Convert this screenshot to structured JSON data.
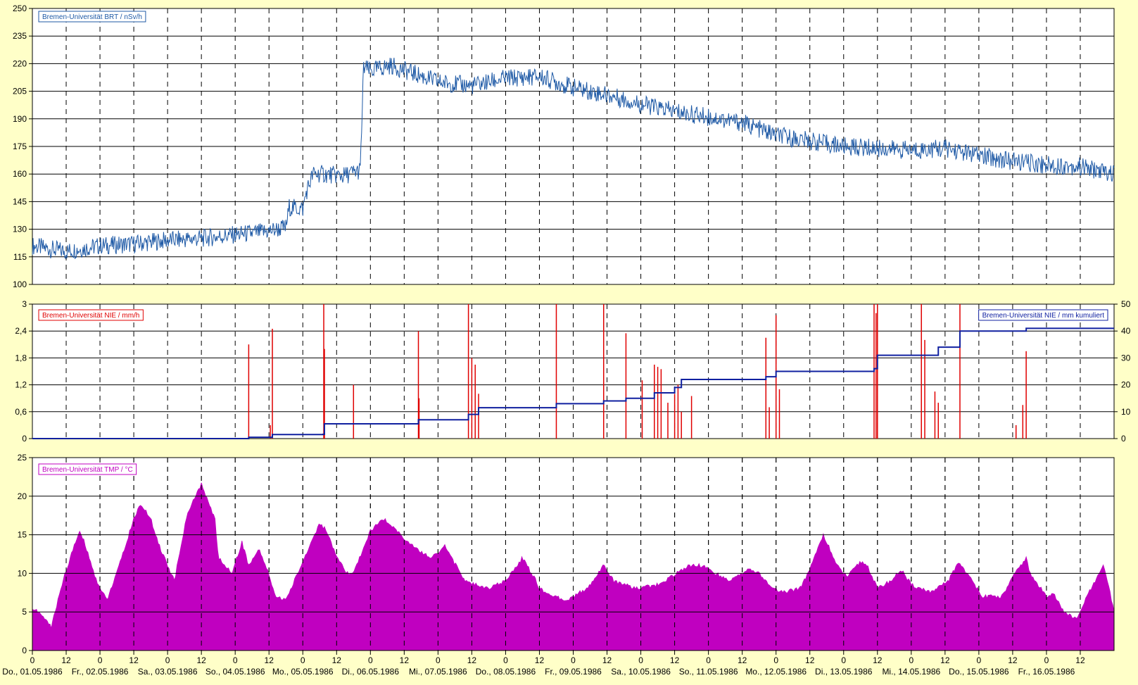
{
  "chart_data": [
    {
      "id": "dose-rate",
      "type": "line",
      "legend": "Bremen-Universität   BRT / nSv/h",
      "legend_position": "top-left",
      "color": "#1f5aa6",
      "ylim": [
        100,
        250
      ],
      "yticks": [
        "100",
        "115",
        "130",
        "145",
        "160",
        "175",
        "190",
        "205",
        "220",
        "235",
        "250"
      ],
      "grid": true,
      "series": [
        {
          "x_days": [
            0,
            0.3,
            0.5,
            1,
            1.5,
            2,
            2.5,
            3,
            3.3,
            3.5,
            3.75,
            3.8,
            4.0,
            4.05,
            4.15,
            4.3,
            4.6,
            4.85,
            4.9,
            5.0,
            5.3,
            5.7,
            6.0,
            6.5,
            7.0,
            7.5,
            8.0,
            8.5,
            9.0,
            9.5,
            10.0,
            10.5,
            11.0,
            11.5,
            12.0,
            12.5,
            13.0,
            13.5,
            14.0,
            14.5,
            15.0,
            15.5,
            16.0
          ],
          "values": [
            121,
            119,
            118,
            121,
            122,
            124,
            125,
            127,
            128,
            129,
            131,
            142,
            141,
            150,
            160,
            160,
            159,
            162,
            218,
            216,
            219,
            214,
            210,
            208,
            212,
            213,
            207,
            203,
            198,
            194,
            191,
            188,
            181,
            178,
            175,
            174,
            173,
            174,
            170,
            167,
            165,
            164,
            160
          ]
        }
      ]
    },
    {
      "id": "precipitation",
      "type": "bar+line",
      "legend_left": "Bremen-Universität   NIE / mm/h",
      "legend_right": "Bremen-Universität   NIE / mm kumuliert",
      "legend_left_position": "top-left",
      "legend_right_position": "top-right",
      "color_bars": "#e00000",
      "color_line": "#1020a0",
      "ylim_left": [
        0,
        3
      ],
      "ylim_right": [
        0,
        50
      ],
      "yticks_left": [
        "0",
        "0,6",
        "1,2",
        "1,8",
        "2,4",
        "3"
      ],
      "yticks_right": [
        "0",
        "10",
        "20",
        "30",
        "40",
        "50"
      ],
      "grid": true,
      "bars": {
        "x_days": [
          3.2,
          3.52,
          3.55,
          4.31,
          4.32,
          4.75,
          5.71,
          5.72,
          6.45,
          6.5,
          6.55,
          6.6,
          7.75,
          8.45,
          8.78,
          9.02,
          9.2,
          9.25,
          9.3,
          9.4,
          9.5,
          9.55,
          9.6,
          9.75,
          10.85,
          10.9,
          11.0,
          11.05,
          12.45,
          12.48,
          12.5,
          13.15,
          13.2,
          13.35,
          13.4,
          13.72,
          14.55,
          14.65,
          14.7
        ],
        "values": [
          2.1,
          0.3,
          2.45,
          3.0,
          2.0,
          1.2,
          2.4,
          0.9,
          3.0,
          1.8,
          1.65,
          1.0,
          3.0,
          3.0,
          2.35,
          1.3,
          1.65,
          1.6,
          1.55,
          0.8,
          1.0,
          1.2,
          0.6,
          0.95,
          2.25,
          0.7,
          2.75,
          1.1,
          3.0,
          2.8,
          3.0,
          3.0,
          2.2,
          1.05,
          0.8,
          3.0,
          0.3,
          0.75,
          1.95
        ]
      },
      "cumulative": {
        "x_days": [
          0,
          3.2,
          3.55,
          4.3,
          4.32,
          5.71,
          6.45,
          6.6,
          7.75,
          8.45,
          8.78,
          9.2,
          9.5,
          9.6,
          10.85,
          11.0,
          12.45,
          12.5,
          13.4,
          13.72,
          14.55,
          14.7,
          16.0
        ],
        "values": [
          0,
          0.5,
          1.5,
          1.6,
          5.5,
          7,
          9,
          11.5,
          13,
          14,
          15,
          17,
          19,
          22,
          23,
          25,
          26,
          31,
          34,
          40,
          40,
          41,
          41
        ]
      }
    },
    {
      "id": "temperature",
      "type": "area",
      "legend": "Bremen-Universität   TMP / °C",
      "legend_position": "top-left",
      "color": "#c000c0",
      "ylim": [
        0,
        25
      ],
      "yticks": [
        "0",
        "5",
        "10",
        "15",
        "20",
        "25"
      ],
      "grid": true,
      "series": [
        {
          "x_days": [
            0,
            0.15,
            0.28,
            0.45,
            0.6,
            0.7,
            0.75,
            0.95,
            1.1,
            1.25,
            1.5,
            1.6,
            1.75,
            1.9,
            2.1,
            2.3,
            2.5,
            2.7,
            2.75,
            2.95,
            3.1,
            3.2,
            3.35,
            3.45,
            3.6,
            3.75,
            4.0,
            4.25,
            4.35,
            4.5,
            4.65,
            4.75,
            5.0,
            5.2,
            5.35,
            5.55,
            5.7,
            5.9,
            6.1,
            6.2,
            6.4,
            6.55,
            6.75,
            7.0,
            7.25,
            7.45,
            7.5,
            7.7,
            7.9,
            8.2,
            8.45,
            8.6,
            8.75,
            8.95,
            9.25,
            9.45,
            9.7,
            9.9,
            10.1,
            10.3,
            10.6,
            10.75,
            10.95,
            11.1,
            11.35,
            11.5,
            11.7,
            11.9,
            12.05,
            12.25,
            12.35,
            12.5,
            12.7,
            12.85,
            13.0,
            13.15,
            13.3,
            13.55,
            13.7,
            13.9,
            14.05,
            14.35,
            14.5,
            14.7,
            14.75,
            15.0,
            15.1,
            15.25,
            15.45,
            15.6,
            15.85,
            16.0
          ],
          "values": [
            5.5,
            4.5,
            3,
            9,
            13,
            15.5,
            14.5,
            9,
            6.5,
            10,
            17,
            19,
            17,
            13,
            9,
            18,
            21.5,
            17,
            12,
            10,
            14,
            11,
            13,
            11,
            7,
            6.5,
            11.5,
            16.5,
            15.5,
            12,
            10,
            10,
            15.5,
            17,
            16,
            14,
            13,
            12,
            13.5,
            12,
            9,
            8.5,
            8,
            9,
            12,
            9,
            8,
            7,
            6.5,
            8,
            11,
            9,
            8.5,
            8,
            8.5,
            9.5,
            11,
            11,
            10,
            9,
            10.5,
            10,
            8,
            7.5,
            8,
            10.5,
            15,
            11,
            9.5,
            11.5,
            11,
            8,
            9,
            10.5,
            8.5,
            8,
            7.5,
            9,
            11.5,
            9,
            7,
            7,
            9.5,
            12,
            10,
            7,
            7.5,
            5,
            4,
            7,
            11,
            5
          ]
        }
      ],
      "x_tick_labels": [
        "0",
        "12",
        "0",
        "12",
        "0",
        "12",
        "0",
        "12",
        "0",
        "12",
        "0",
        "12",
        "0",
        "12",
        "0",
        "12",
        "0",
        "12",
        "0",
        "12",
        "0",
        "12",
        "0",
        "12",
        "0",
        "12",
        "0",
        "12",
        "0",
        "12",
        "0",
        "12"
      ],
      "x_date_labels": [
        "Do., 01.05.1986",
        "Fr., 02.05.1986",
        "Sa., 03.05.1986",
        "So., 04.05.1986",
        "Mo., 05.05.1986",
        "Di., 06.05.1986",
        "Mi., 07.05.1986",
        "Do., 08.05.1986",
        "Fr., 09.05.1986",
        "Sa., 10.05.1986",
        "So., 11.05.1986",
        "Mo., 12.05.1986",
        "Di., 13.05.1986",
        "Mi., 14.05.1986",
        "Do., 15.05.1986",
        "Fr., 16.05.1986"
      ]
    }
  ]
}
